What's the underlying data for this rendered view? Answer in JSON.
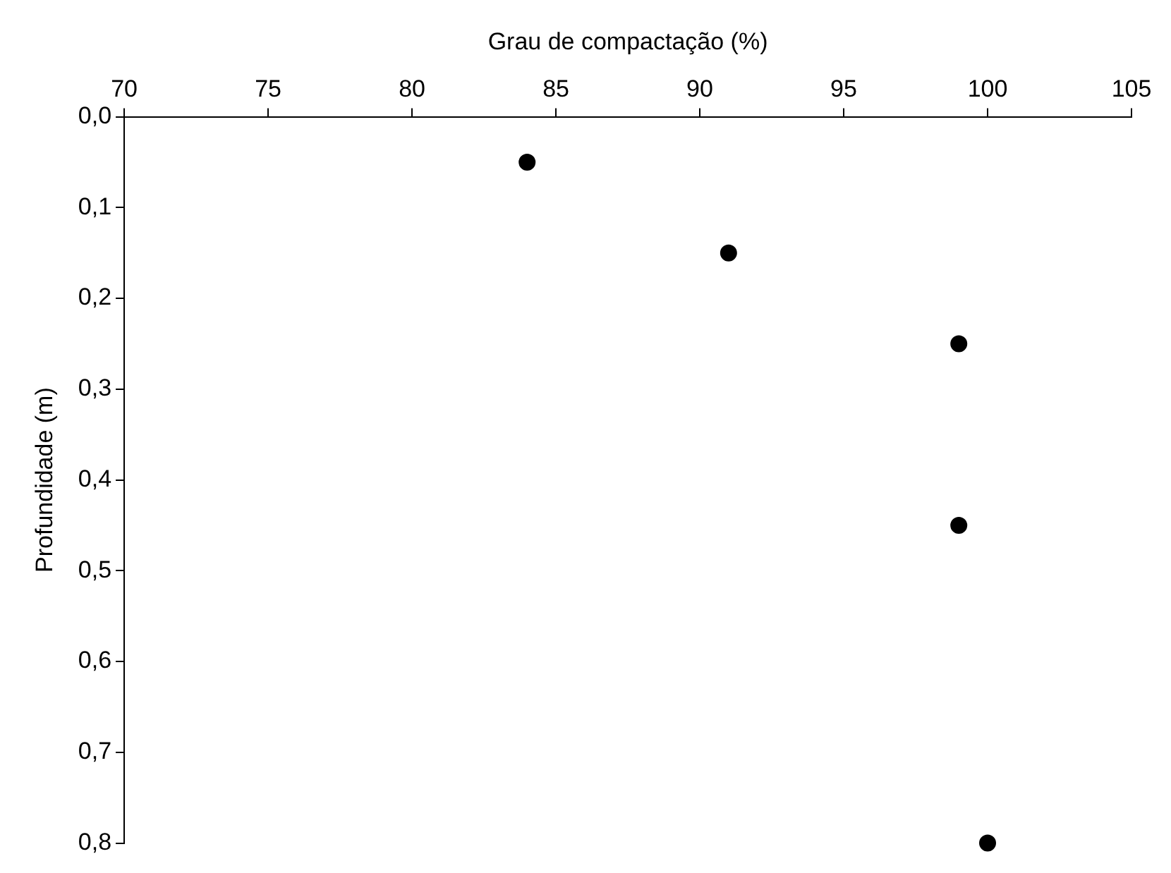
{
  "chart_data": {
    "type": "scatter",
    "xlabel": "Grau de compactação (%)",
    "ylabel": "Profundidade (m)",
    "x": [
      84,
      91,
      99,
      99,
      100
    ],
    "series": [
      {
        "color": "#000000",
        "values": [
          0.05,
          0.15,
          0.25,
          0.45,
          0.8
        ]
      }
    ],
    "marker": "circle",
    "xlim": [
      70,
      105
    ],
    "xticks": [
      70,
      75,
      80,
      85,
      90,
      95,
      100,
      105
    ],
    "ylim": [
      0.8,
      0
    ],
    "yticks": [
      {
        "value": 0,
        "label": "0,0"
      },
      {
        "value": 0.1,
        "label": "0,1"
      },
      {
        "value": 0.2,
        "label": "0,2"
      },
      {
        "value": 0.3,
        "label": "0,3"
      },
      {
        "value": 0.4,
        "label": "0,4"
      },
      {
        "value": 0.5,
        "label": "0,5"
      },
      {
        "value": 0.6,
        "label": "0,6"
      },
      {
        "value": 0.7,
        "label": "0,7"
      },
      {
        "value": 0.8,
        "label": "0,8"
      }
    ]
  }
}
